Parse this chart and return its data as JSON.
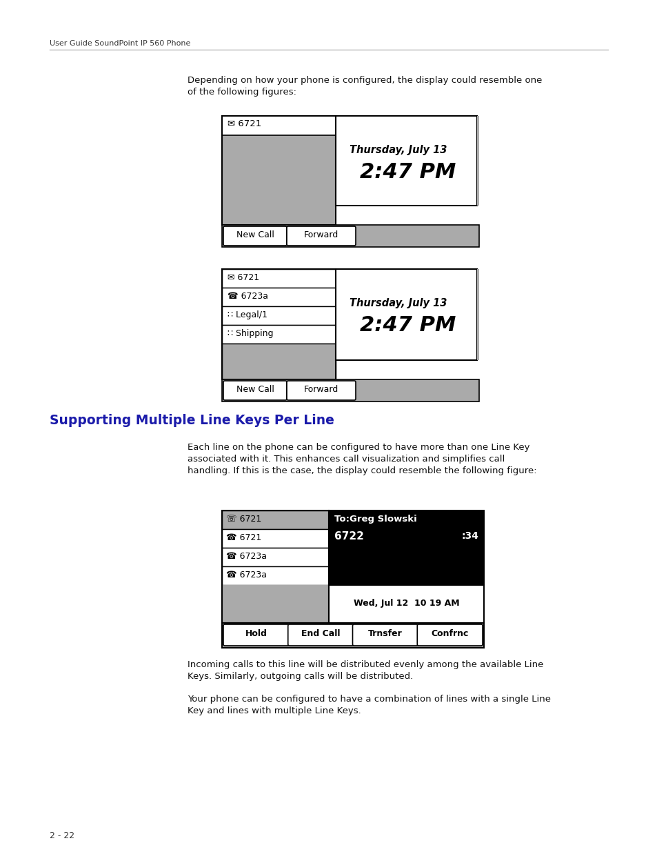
{
  "bg_color": "#ffffff",
  "header_text": "User Guide SoundPoint IP 560 Phone",
  "footer_text": "2 - 22",
  "intro_text": "Depending on how your phone is configured, the display could resemble one\nof the following figures:",
  "section_title": "Supporting Multiple Line Keys Per Line",
  "section_title_color": "#1a1aaa",
  "body_text1": "Each line on the phone can be configured to have more than one Line Key\nassociated with it. This enhances call visualization and simplifies call\nhandling. If this is the case, the display could resemble the following figure:",
  "body_text2": "Incoming calls to this line will be distributed evenly among the available Line\nKeys. Similarly, outgoing calls will be distributed.",
  "body_text3": "Your phone can be configured to have a combination of lines with a single Line\nKey and lines with multiple Line Keys.",
  "gray_color": "#aaaaaa",
  "mid_gray": "#999999"
}
